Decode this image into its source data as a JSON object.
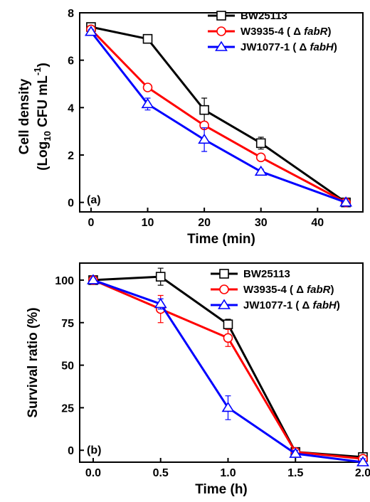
{
  "chart_data": [
    {
      "panel_label": "(a)",
      "type": "line",
      "xlabel": "Time (min)",
      "ylabel_line1": "Cell density",
      "ylabel_line2_prefix": "(Log",
      "ylabel_line2_sub": "10",
      "ylabel_line2_mid": " CFU mL",
      "ylabel_line2_sup": "-1",
      "ylabel_line2_suffix": ")",
      "xlim": [
        -2,
        48
      ],
      "ylim": [
        -0.4,
        8
      ],
      "xticks": [
        0,
        10,
        20,
        30,
        40
      ],
      "yticks": [
        0,
        2,
        4,
        6,
        8
      ],
      "series": [
        {
          "name": "BW25113",
          "legend_prefix": "",
          "legend_italic": "",
          "legend_suffix": "",
          "color": "#000000",
          "marker": "square",
          "x": [
            0,
            10,
            20,
            30,
            45
          ],
          "y": [
            7.4,
            6.9,
            3.9,
            2.5,
            0.0
          ],
          "err": [
            0.1,
            0.1,
            0.5,
            0.25,
            0.05
          ]
        },
        {
          "name": "W3935-4",
          "legend_prefix": " ( Δ ",
          "legend_italic": "fabR",
          "legend_suffix": ")",
          "color": "#ff0000",
          "marker": "circle",
          "x": [
            0,
            10,
            20,
            30,
            45
          ],
          "y": [
            7.3,
            4.85,
            3.25,
            1.9,
            0.0
          ],
          "err": [
            0.1,
            0.1,
            0.15,
            0.1,
            0.05
          ]
        },
        {
          "name": "JW1077-1",
          "legend_prefix": " ( Δ ",
          "legend_italic": "fabH",
          "legend_suffix": ")",
          "color": "#0000ff",
          "marker": "triangle",
          "x": [
            0,
            10,
            20,
            30,
            45
          ],
          "y": [
            7.2,
            4.15,
            2.65,
            1.3,
            0.0
          ],
          "err": [
            0.1,
            0.25,
            0.5,
            0.1,
            0.05
          ]
        }
      ]
    },
    {
      "panel_label": "(b)",
      "type": "line",
      "xlabel": "Time (h)",
      "ylabel": "Survival ratio (%)",
      "xlim": [
        -0.1,
        2.0
      ],
      "ylim": [
        -7,
        110
      ],
      "xticks": [
        "0.0",
        "0.5",
        "1.0",
        "1.5",
        "2.0"
      ],
      "yticks": [
        0,
        25,
        50,
        75,
        100
      ],
      "series": [
        {
          "name": "BW25113",
          "legend_prefix": "",
          "legend_italic": "",
          "legend_suffix": "",
          "color": "#000000",
          "marker": "square",
          "x": [
            0,
            0.5,
            1.0,
            1.5,
            2.0
          ],
          "y": [
            100,
            102,
            74,
            -1,
            -4
          ],
          "err": [
            1,
            5,
            3,
            2,
            2
          ]
        },
        {
          "name": "W3935-4",
          "legend_prefix": "  ( Δ ",
          "legend_italic": "fabR",
          "legend_suffix": ")",
          "color": "#ff0000",
          "marker": "circle",
          "x": [
            0,
            0.5,
            1.0,
            1.5,
            2.0
          ],
          "y": [
            100,
            83,
            66,
            -1,
            -5
          ],
          "err": [
            1,
            8,
            5,
            2,
            2
          ]
        },
        {
          "name": "JW1077-1",
          "legend_prefix": " ( Δ ",
          "legend_italic": "fabH",
          "legend_suffix": ")",
          "color": "#0000ff",
          "marker": "triangle",
          "x": [
            0,
            0.5,
            1.0,
            1.5,
            2.0
          ],
          "y": [
            100,
            86,
            25,
            -2,
            -7
          ],
          "err": [
            1,
            3,
            7,
            2,
            2
          ]
        }
      ]
    }
  ]
}
